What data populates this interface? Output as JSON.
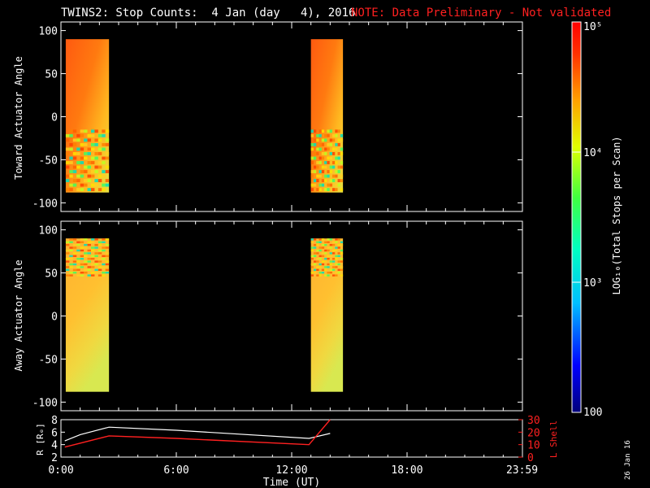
{
  "header": {
    "title": "TWINS2: Stop Counts:  4 Jan (day   4), 2016",
    "note": "NOTE: Data Preliminary - Not validated"
  },
  "footer": {
    "date_stamp": "26 Jan 16"
  },
  "colors": {
    "background": "#000000",
    "axes": "#ffffff",
    "note": "#ff2020",
    "r_line": "#ffffff",
    "l_shell_line": "#ff2020"
  },
  "chart_data": [
    {
      "type": "heatmap",
      "panel": "toward",
      "ylabel": "Toward Actuator Angle",
      "ylim": [
        -110,
        110
      ],
      "yticks": [
        100,
        50,
        0,
        -50,
        -100
      ],
      "x_range_hours": [
        0,
        24
      ],
      "blocks": [
        {
          "x_start": "00:15",
          "x_end": "02:30",
          "y_min": -88,
          "y_max": 90
        },
        {
          "x_start": "13:00",
          "x_end": "14:40",
          "y_min": -88,
          "y_max": 90
        }
      ]
    },
    {
      "type": "heatmap",
      "panel": "away",
      "ylabel": "Away Actuator Angle",
      "ylim": [
        -110,
        110
      ],
      "yticks": [
        100,
        50,
        0,
        -50,
        -100
      ],
      "x_range_hours": [
        0,
        24
      ],
      "blocks": [
        {
          "x_start": "00:15",
          "x_end": "02:30",
          "y_min": -88,
          "y_max": 90
        },
        {
          "x_start": "13:00",
          "x_end": "14:40",
          "y_min": -88,
          "y_max": 90
        }
      ]
    },
    {
      "type": "line",
      "panel": "ephemeris",
      "ylabel_left": "R [Rₑ]",
      "ylabel_right": "L Shell",
      "ylim_left": [
        2,
        8
      ],
      "yticks_left": [
        8,
        6,
        4,
        2
      ],
      "ylim_right": [
        0,
        30
      ],
      "yticks_right": [
        30,
        20,
        10,
        0
      ],
      "xlabel": "Time (UT)",
      "xticks": [
        "0:00",
        "6:00",
        "12:00",
        "18:00",
        "23:59"
      ],
      "series": [
        {
          "name": "R",
          "x_hours": [
            0.2,
            1.0,
            2.5,
            6.0,
            12.9,
            14.0
          ],
          "values": [
            4.6,
            5.6,
            6.8,
            6.3,
            5.0,
            5.8
          ]
        },
        {
          "name": "L",
          "x_hours": [
            0.2,
            2.5,
            6.0,
            12.9,
            14.0
          ],
          "values": [
            8,
            17,
            15,
            10,
            30
          ]
        }
      ]
    },
    {
      "type": "colorbar",
      "label": "LOG₁₀(Total Stops per Scan)",
      "range": [
        100,
        100000
      ],
      "tick_labels": [
        "10⁵",
        "10⁴",
        "10³",
        "100"
      ]
    }
  ]
}
